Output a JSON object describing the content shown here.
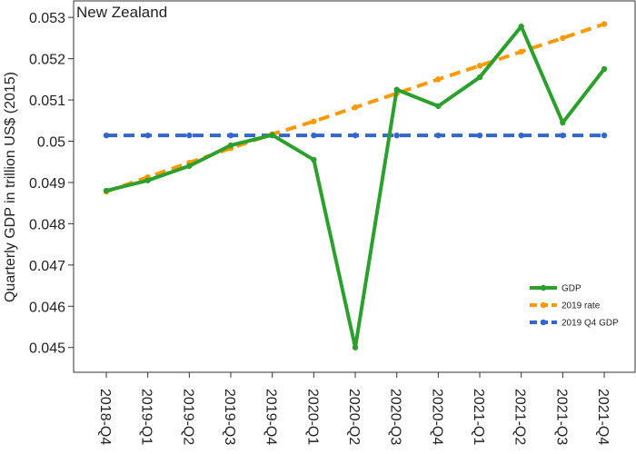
{
  "chart_data": {
    "type": "line",
    "title": "New Zealand",
    "xlabel": "",
    "ylabel": "Quarterly GDP in trillion US$ (2015)",
    "categories": [
      "2018-Q4",
      "2019-Q1",
      "2019-Q2",
      "2019-Q3",
      "2019-Q4",
      "2020-Q1",
      "2020-Q2",
      "2020-Q3",
      "2020-Q4",
      "2021-Q1",
      "2021-Q2",
      "2021-Q3",
      "2021-Q4"
    ],
    "ylim": [
      0.0444,
      0.0534
    ],
    "yticks": [
      0.045,
      0.046,
      0.047,
      0.048,
      0.049,
      0.05,
      0.051,
      0.052,
      0.053
    ],
    "ytick_labels": [
      "0.045",
      "0.046",
      "0.047",
      "0.048",
      "0.049",
      "0.05",
      "0.051",
      "0.052",
      "0.053"
    ],
    "grid": false,
    "legend_position": "bottom-right",
    "series": [
      {
        "name": "GDP",
        "color": "#2ca02c",
        "style": "solid",
        "values": [
          0.0488,
          0.04905,
          0.0494,
          0.0499,
          0.05015,
          0.04955,
          0.045,
          0.05125,
          0.05085,
          0.05155,
          0.05278,
          0.05045,
          0.05175
        ]
      },
      {
        "name": "2019 rate",
        "color": "#ff9900",
        "style": "dashed",
        "values": [
          0.04878,
          0.04913,
          0.04948,
          0.04983,
          0.05017,
          0.05048,
          0.05082,
          0.05116,
          0.0515,
          0.05183,
          0.05217,
          0.0525,
          0.05284
        ]
      },
      {
        "name": "2019 Q4 GDP",
        "color": "#3366cc",
        "style": "dashed",
        "values": [
          0.05014,
          0.05014,
          0.05014,
          0.05014,
          0.05014,
          0.05014,
          0.05014,
          0.05014,
          0.05014,
          0.05014,
          0.05014,
          0.05014,
          0.05014
        ]
      }
    ]
  }
}
